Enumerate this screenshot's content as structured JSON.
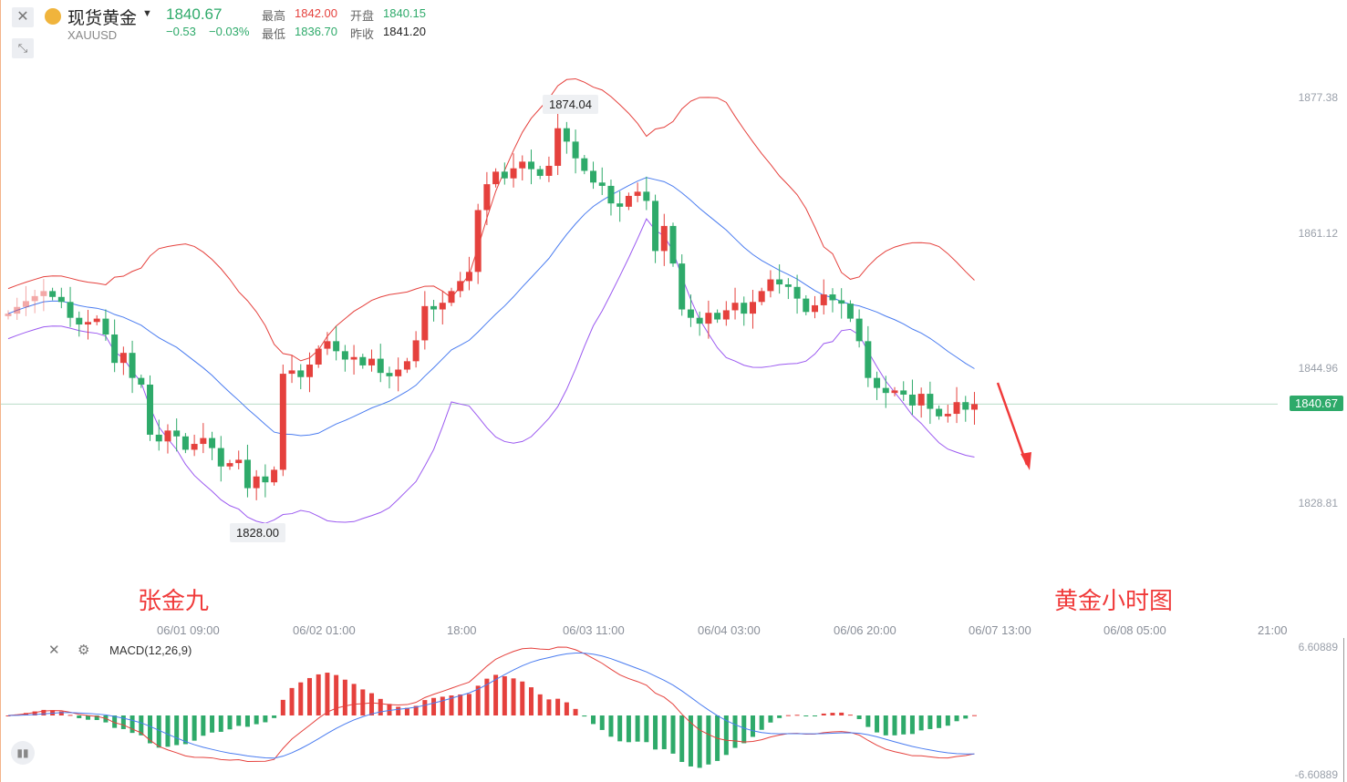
{
  "header": {
    "name": "现货黄金",
    "symbol": "XAUUSD",
    "price": "1840.67",
    "change": "−0.53",
    "change_pct": "−0.03%",
    "high_label": "最高",
    "high": "1842.00",
    "open_label": "开盘",
    "open": "1840.15",
    "low_label": "最低",
    "low": "1836.70",
    "prev_label": "昨收",
    "prev": "1841.20"
  },
  "price_axis": [
    "1877.38",
    "1861.12",
    "1844.96",
    "1828.81"
  ],
  "current_price_tag": "1840.67",
  "annotations": {
    "high": "1874.04",
    "low": "1828.00"
  },
  "time_axis": [
    "06/01 09:00",
    "06/02 01:00",
    "18:00",
    "06/03 11:00",
    "06/04 03:00",
    "06/06 20:00",
    "06/07 13:00",
    "06/08 05:00",
    "21:00"
  ],
  "watermarks": {
    "author": "张金九",
    "caption": "黄金小时图"
  },
  "macd": {
    "label": "MACD(12,26,9)",
    "axis_top": "6.60889",
    "axis_bottom": "-6.60889"
  },
  "colors": {
    "up": "#e5413d",
    "down": "#2eaa6a",
    "mid_band": "#4a7cf0",
    "upper_band": "#e5413d",
    "lower_band": "#9b59f0"
  },
  "chart_data": {
    "type": "candlestick",
    "ylim": [
      1820,
      1882
    ],
    "closes": [
      1851.5,
      1852.3,
      1853.0,
      1853.6,
      1854.2,
      1853.5,
      1852.9,
      1851.0,
      1850.2,
      1850.5,
      1850.9,
      1849.0,
      1845.6,
      1846.8,
      1843.8,
      1843.0,
      1837.0,
      1836.2,
      1837.5,
      1836.8,
      1835.2,
      1835.9,
      1836.6,
      1835.4,
      1833.2,
      1833.6,
      1834.0,
      1830.6,
      1832.0,
      1831.3,
      1832.8,
      1844.3,
      1844.7,
      1843.9,
      1845.4,
      1847.3,
      1848.2,
      1847.0,
      1846.0,
      1846.3,
      1845.3,
      1846.1,
      1844.4,
      1844.0,
      1844.8,
      1845.8,
      1848.3,
      1852.4,
      1852.0,
      1852.8,
      1854.2,
      1855.4,
      1856.5,
      1863.9,
      1867.0,
      1868.5,
      1867.7,
      1868.9,
      1869.7,
      1868.8,
      1868.0,
      1869.2,
      1873.7,
      1872.1,
      1870.1,
      1868.6,
      1867.2,
      1866.8,
      1864.7,
      1864.3,
      1865.6,
      1866.1,
      1865.0,
      1859.0,
      1862.0,
      1857.5,
      1852.0,
      1851.0,
      1850.3,
      1851.6,
      1850.8,
      1851.9,
      1852.8,
      1851.5,
      1852.9,
      1854.2,
      1855.6,
      1855.0,
      1854.7,
      1853.3,
      1851.7,
      1852.5,
      1853.8,
      1853.1,
      1852.7,
      1850.9,
      1848.2,
      1843.8,
      1842.6,
      1842.0,
      1842.3,
      1841.8,
      1840.5,
      1841.9,
      1840.1,
      1839.2,
      1839.5,
      1840.9,
      1840.0,
      1840.67
    ]
  }
}
